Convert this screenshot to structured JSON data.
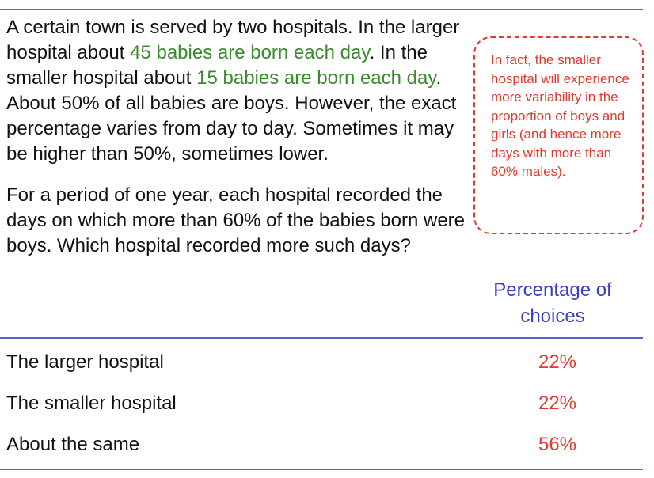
{
  "question": {
    "p1_a": "A certain town is served by two hospitals. In the larger hospital about ",
    "p1_b": "45 babies are born each day",
    "p1_c": ". In the smaller hospital about ",
    "p1_d": "15 babies are born each day",
    "p1_e": ". About 50% of all babies are boys. However, the exact percentage varies from day to day. Sometimes it may be higher than 50%, sometimes lower.",
    "p2": "For a period of one year, each hospital recorded the days on which more than 60% of the babies born were boys. Which hospital recorded more such days?"
  },
  "callout": "In fact, the smaller hospital will experience more variability in the proportion of boys and girls (and hence more days with more than 60% males).",
  "column_header": "Percentage of choices",
  "choices": [
    {
      "label": "The larger hospital",
      "percent": "22%"
    },
    {
      "label": "The smaller hospital",
      "percent": "22%"
    },
    {
      "label": "About the same",
      "percent": "56%"
    }
  ],
  "colors": {
    "rule": "#5b63c9",
    "highlight_green": "#3a8a2e",
    "accent_red": "#e03a2e",
    "header_blue": "#3a3fc1"
  }
}
